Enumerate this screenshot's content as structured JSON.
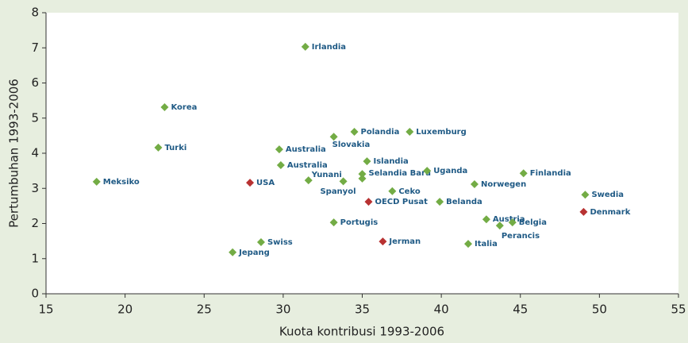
{
  "chart_data": {
    "type": "scatter",
    "xlabel": "Kuota kontribusi 1993-2006",
    "ylabel": "Pertumbuhan 1993-2006",
    "xlim": [
      15,
      55
    ],
    "xticks": [
      15,
      20,
      25,
      30,
      35,
      40,
      45,
      50,
      55
    ],
    "ylim": [
      0,
      8
    ],
    "yticks": [
      0,
      1,
      2,
      3,
      4,
      5,
      6,
      7,
      8
    ],
    "grid": false,
    "series": [
      {
        "color": "#73ac45",
        "labels": [
          "Irlandia",
          "Korea",
          "Turki",
          "Meksiko",
          "Australia",
          "Australia",
          "Slovakia",
          "Polandia",
          "Luxemburg",
          "Islandia",
          "Selandia Baru",
          "Spanyol",
          null,
          "Yunani",
          "Ceko",
          "Uganda",
          "Belanda",
          "Norwegen",
          "Finlandia",
          "Swedia",
          "Austria",
          "Belgia",
          "Perancis",
          "Italia",
          "Portugis",
          "Swiss",
          "Jepang"
        ],
        "x": [
          31.4,
          22.5,
          22.1,
          18.2,
          29.75,
          29.85,
          33.2,
          34.5,
          38.0,
          35.3,
          35.0,
          35.0,
          33.8,
          31.6,
          36.9,
          39.1,
          39.9,
          42.1,
          45.2,
          49.1,
          42.85,
          44.5,
          43.7,
          41.7,
          33.2,
          28.6,
          26.8
        ],
        "values": [
          7.03,
          5.31,
          4.16,
          3.19,
          4.11,
          3.66,
          4.47,
          4.61,
          4.61,
          3.77,
          3.41,
          3.28,
          3.2,
          3.23,
          2.92,
          3.5,
          2.62,
          3.12,
          3.43,
          2.82,
          2.12,
          2.03,
          1.94,
          1.42,
          2.03,
          1.47,
          1.18
        ]
      },
      {
        "color": "#b83232",
        "labels": [
          "USA",
          "OECD Pusat",
          "Denmark",
          "Jerman"
        ],
        "x": [
          27.9,
          35.4,
          49.0,
          36.3
        ],
        "values": [
          3.16,
          2.62,
          2.33,
          1.49
        ]
      }
    ]
  }
}
